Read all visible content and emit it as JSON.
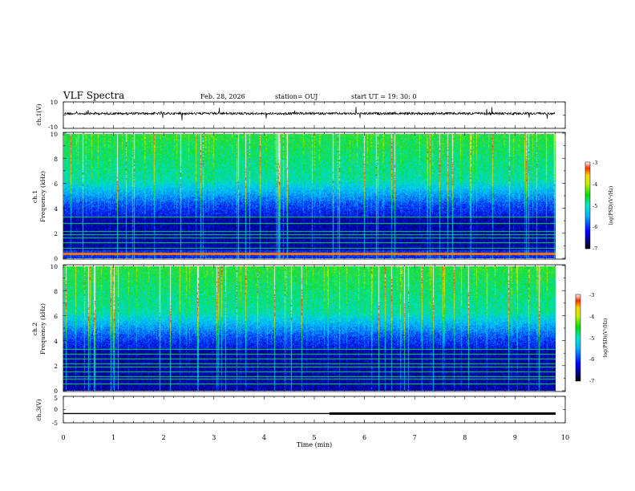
{
  "header": {
    "title": "VLF Spectra",
    "date": "Feb. 28, 2026",
    "station": "station= OUJ",
    "start": "start  UT =   19: 30: 0"
  },
  "chart_data": [
    {
      "type": "line",
      "name": "ch1-waveform",
      "ylabel": "ch.1(V)",
      "ylim": [
        -10,
        10
      ],
      "yticks": [
        "10",
        "-10"
      ],
      "xlim": [
        0,
        10
      ]
    },
    {
      "type": "heatmap",
      "name": "ch1-spectrogram",
      "ylabel": "Frequency (kHz)",
      "ylabel_prefix": "ch.1",
      "ylim": [
        0,
        10
      ],
      "yticks": [
        "0",
        "2",
        "4",
        "6",
        "8",
        "10"
      ],
      "xlim": [
        0,
        10
      ],
      "colorbar": {
        "label": "log(PSD)(V²/Hz)",
        "ticks": [
          "-3",
          "-4",
          "-5",
          "-6",
          "-7"
        ],
        "range": [
          -7,
          -3
        ]
      }
    },
    {
      "type": "heatmap",
      "name": "ch2-spectrogram",
      "ylabel": "Frequency (kHz)",
      "ylabel_prefix": "ch.2",
      "ylim": [
        0,
        10
      ],
      "yticks": [
        "0",
        "2",
        "4",
        "6",
        "8",
        "10"
      ],
      "xlim": [
        0,
        10
      ],
      "colorbar": {
        "label": "log(PSD)(V²/Hz)",
        "ticks": [
          "-3",
          "-4",
          "-5",
          "-6",
          "-7"
        ],
        "range": [
          -7,
          -3
        ]
      }
    },
    {
      "type": "line",
      "name": "ch3-signal",
      "ylabel": "ch.3(V)",
      "ylim": [
        -5,
        5
      ],
      "yticks": [
        "5",
        "0",
        "-5"
      ],
      "xlim": [
        0,
        10
      ],
      "xticks": [
        "0",
        "1",
        "2",
        "3",
        "4",
        "5",
        "6",
        "7",
        "8",
        "9",
        "10"
      ],
      "xlabel": "Time  (min)",
      "level_V": -1.5,
      "thickening_after_min": 5.3
    }
  ]
}
